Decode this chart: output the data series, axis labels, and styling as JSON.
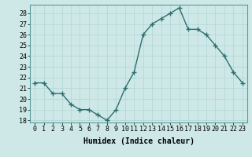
{
  "x": [
    0,
    1,
    2,
    3,
    4,
    5,
    6,
    7,
    8,
    9,
    10,
    11,
    12,
    13,
    14,
    15,
    16,
    17,
    18,
    19,
    20,
    21,
    22,
    23
  ],
  "y": [
    21.5,
    21.5,
    20.5,
    20.5,
    19.5,
    19.0,
    19.0,
    18.5,
    18.0,
    19.0,
    21.0,
    22.5,
    26.0,
    27.0,
    27.5,
    28.0,
    28.5,
    26.5,
    26.5,
    26.0,
    25.0,
    24.0,
    22.5,
    21.5
  ],
  "line_color": "#2d6e6e",
  "marker": "+",
  "marker_size": 4,
  "linewidth": 1.0,
  "bg_color": "#cee8e8",
  "grid_color": "#b0d4d4",
  "xlabel": "Humidex (Indice chaleur)",
  "xlabel_fontsize": 7,
  "ylabel_ticks": [
    18,
    19,
    20,
    21,
    22,
    23,
    24,
    25,
    26,
    27,
    28
  ],
  "xlim": [
    -0.5,
    23.5
  ],
  "ylim": [
    17.8,
    28.8
  ],
  "xticks": [
    0,
    1,
    2,
    3,
    4,
    5,
    6,
    7,
    8,
    9,
    10,
    11,
    12,
    13,
    14,
    15,
    16,
    17,
    18,
    19,
    20,
    21,
    22,
    23
  ],
  "tick_fontsize": 6,
  "title": ""
}
